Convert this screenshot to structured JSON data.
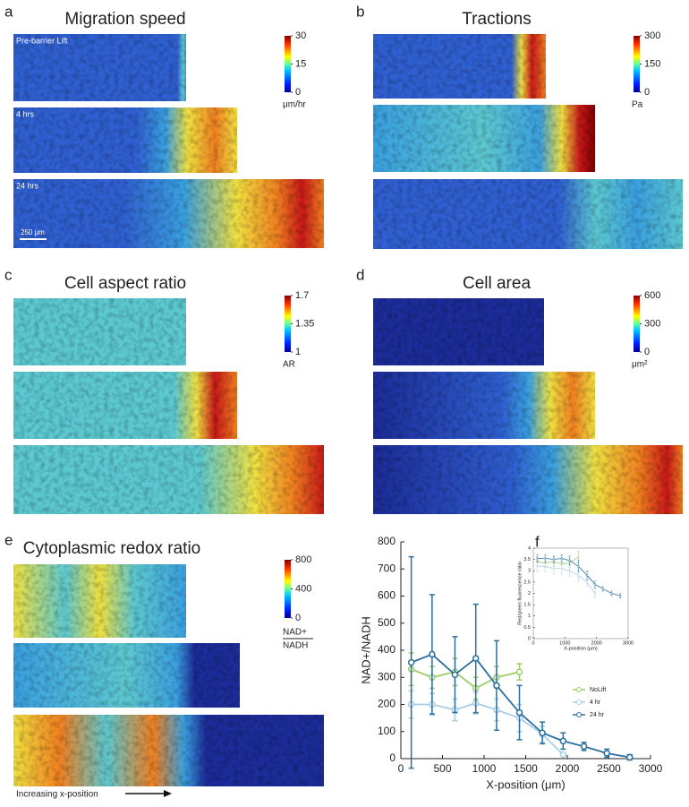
{
  "chart_data": [
    {
      "type": "heatmap",
      "panel": "a",
      "title": "Migration speed",
      "image_labels": [
        "Pre-barrier Lift",
        "4 hrs",
        "24 hrs"
      ],
      "scale_bar": "250 μm",
      "colorbar": {
        "clim": [
          0,
          30
        ],
        "ticks": [
          0,
          15,
          30
        ],
        "unit": "μm/hr"
      }
    },
    {
      "type": "heatmap",
      "panel": "b",
      "title": "Tractions",
      "colorbar": {
        "clim": [
          0,
          300
        ],
        "ticks": [
          0,
          150,
          300
        ],
        "unit": "Pa"
      }
    },
    {
      "type": "heatmap",
      "panel": "c",
      "title": "Cell aspect ratio",
      "colorbar": {
        "clim": [
          1,
          1.7
        ],
        "ticks": [
          1,
          1.35,
          1.7
        ],
        "unit": "AR"
      }
    },
    {
      "type": "heatmap",
      "panel": "d",
      "title": "Cell area",
      "colorbar": {
        "clim": [
          0,
          600
        ],
        "ticks": [
          0,
          300,
          600
        ],
        "unit": "μm²"
      }
    },
    {
      "type": "heatmap",
      "panel": "e",
      "title": "Cytoplasmic redox ratio",
      "footer": "Increasing x-position",
      "colorbar": {
        "clim": [
          0,
          800
        ],
        "ticks": [
          0,
          400,
          800
        ],
        "unit": [
          "NAD+",
          "NADH"
        ]
      }
    },
    {
      "type": "line",
      "panel": "f",
      "xlabel": "X-position (μm)",
      "ylabel": "NAD+/NADH",
      "xlim": [
        0,
        3000
      ],
      "xticks": [
        0,
        500,
        1000,
        1500,
        2000,
        2500,
        3000
      ],
      "ylim": [
        0,
        800
      ],
      "yticks": [
        0,
        100,
        200,
        300,
        400,
        500,
        600,
        700,
        800
      ],
      "legend": "lower right",
      "series": [
        {
          "name": "NoLift",
          "color": "#9ccc6a",
          "x": [
            125,
            375,
            650,
            900,
            1150,
            1425
          ],
          "values": [
            330,
            300,
            320,
            260,
            300,
            320
          ],
          "errors": [
            60,
            40,
            50,
            40,
            40,
            30
          ]
        },
        {
          "name": "4 hr",
          "color": "#a8cde6",
          "x": [
            125,
            375,
            650,
            900,
            1150,
            1425,
            1700,
            1950
          ],
          "values": [
            200,
            200,
            180,
            205,
            180,
            150,
            90,
            15
          ],
          "errors": [
            50,
            40,
            40,
            40,
            40,
            50,
            30,
            5
          ]
        },
        {
          "name": "24 hr",
          "color": "#2a6f9e",
          "x": [
            125,
            375,
            650,
            900,
            1150,
            1425,
            1700,
            1950,
            2200,
            2475,
            2750
          ],
          "values": [
            355,
            385,
            310,
            370,
            270,
            170,
            95,
            65,
            45,
            20,
            5
          ],
          "errors": [
            390,
            220,
            140,
            200,
            165,
            100,
            40,
            30,
            15,
            15,
            10
          ]
        }
      ],
      "inset": {
        "type": "line",
        "xlabel": "X-position (μm)",
        "ylabel": "Red/green fluorescence ratio",
        "xlim": [
          0,
          3000
        ],
        "xticks": [
          0,
          1000,
          2000,
          3000
        ],
        "ylim": [
          0,
          4
        ],
        "yticks": [
          0,
          0.5,
          1,
          1.5,
          2,
          2.5,
          3,
          3.5,
          4
        ],
        "series": [
          {
            "color": "#9ccc6a",
            "x": [
              125,
              375,
              650,
              900,
              1150,
              1425
            ],
            "values": [
              3.4,
              3.35,
              3.4,
              3.3,
              3.35,
              3.6
            ],
            "errors": [
              0.2,
              0.2,
              0.2,
              0.2,
              0.2,
              0.25
            ]
          },
          {
            "color": "#a8cde6",
            "x": [
              125,
              375,
              650,
              900,
              1150,
              1425,
              1700,
              1950
            ],
            "values": [
              3.2,
              3.2,
              3.1,
              3.1,
              3.0,
              2.8,
              2.5,
              2.0
            ],
            "errors": [
              0.25,
              0.25,
              0.25,
              0.25,
              0.25,
              0.25,
              0.2,
              0.2
            ]
          },
          {
            "color": "#2a6f9e",
            "x": [
              125,
              375,
              650,
              900,
              1150,
              1425,
              1700,
              1950,
              2200,
              2475,
              2750
            ],
            "values": [
              3.55,
              3.55,
              3.5,
              3.55,
              3.45,
              3.2,
              2.8,
              2.4,
              2.2,
              2.0,
              1.9
            ],
            "errors": [
              0.15,
              0.15,
              0.15,
              0.15,
              0.2,
              0.25,
              0.2,
              0.15,
              0.1,
              0.1,
              0.1
            ]
          }
        ]
      }
    }
  ]
}
